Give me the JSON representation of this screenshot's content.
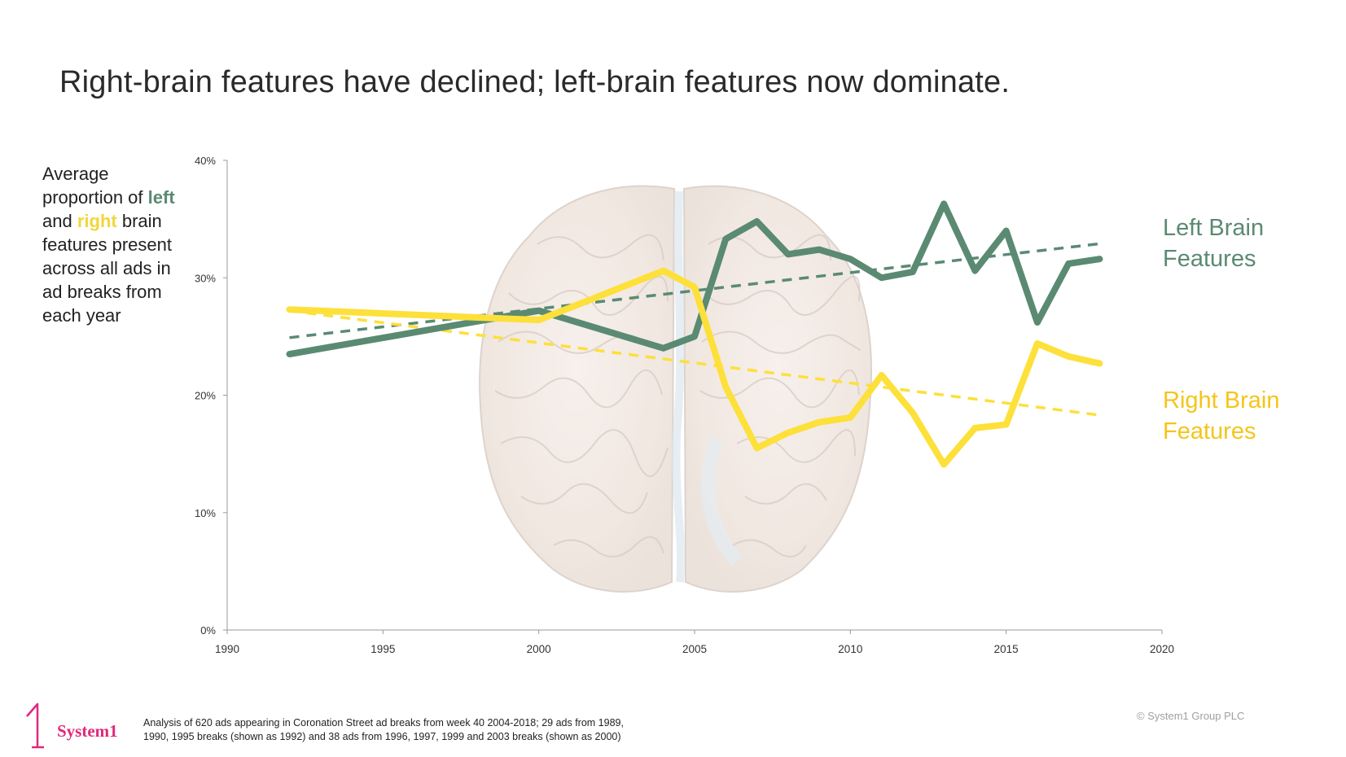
{
  "slide": {
    "title": "Right-brain features have declined; left-brain features now dominate."
  },
  "caption": {
    "part1": "Average proportion of ",
    "left_word": "left",
    "part2": " and ",
    "right_word": "right",
    "part3": " brain features present across all ads in ad breaks from each year"
  },
  "series_labels": {
    "left_line1": "Left Brain",
    "left_line2": "Features",
    "right_line1": "Right Brain",
    "right_line2": "Features"
  },
  "footer": {
    "logo_text": "System1",
    "logo_digit": "1",
    "note_line1": "Analysis of 620 ads appearing in Coronation Street ad breaks from week 40 2004-2018; 29 ads from 1989,",
    "note_line2": "1990, 1995 breaks (shown as 1992) and 38 ads from 1996, 1997, 1999 and 2003 breaks (shown as 2000)",
    "copyright": "© System1 Group PLC"
  },
  "colors": {
    "left": "#5b8a72",
    "right": "#fde03a",
    "brand": "#e0287a",
    "axis": "#9a9a9a"
  },
  "chart_data": {
    "type": "line",
    "title": "",
    "xlabel": "",
    "ylabel": "",
    "xlim": [
      1990,
      2020
    ],
    "ylim": [
      0,
      0.4
    ],
    "xticks": [
      1990,
      1995,
      2000,
      2005,
      2010,
      2015,
      2020
    ],
    "xtick_labels": [
      "1990",
      "1995",
      "2000",
      "2005",
      "2010",
      "2015",
      "2020"
    ],
    "yticks": [
      0,
      0.1,
      0.2,
      0.3,
      0.4
    ],
    "ytick_labels": [
      "0%",
      "10%",
      "20%",
      "30%",
      "40%"
    ],
    "grid": false,
    "series": [
      {
        "name": "Left Brain Features",
        "color": "#5b8a72",
        "x": [
          1992,
          2000,
          2004,
          2005,
          2006,
          2007,
          2008,
          2009,
          2010,
          2011,
          2012,
          2013,
          2014,
          2015,
          2016,
          2017,
          2018
        ],
        "values": [
          0.235,
          0.272,
          0.24,
          0.25,
          0.333,
          0.348,
          0.32,
          0.324,
          0.316,
          0.3,
          0.305,
          0.363,
          0.306,
          0.34,
          0.262,
          0.312,
          0.316
        ]
      },
      {
        "name": "Right Brain Features",
        "color": "#fde03a",
        "x": [
          1992,
          2000,
          2004,
          2005,
          2006,
          2007,
          2008,
          2009,
          2010,
          2011,
          2012,
          2013,
          2014,
          2015,
          2016,
          2017,
          2018
        ],
        "values": [
          0.273,
          0.264,
          0.306,
          0.292,
          0.207,
          0.155,
          0.168,
          0.177,
          0.181,
          0.217,
          0.185,
          0.141,
          0.172,
          0.175,
          0.244,
          0.233,
          0.227
        ]
      }
    ],
    "trendlines": [
      {
        "name": "Left Brain trend",
        "color": "#5b8a72",
        "x": [
          1992,
          2018
        ],
        "values": [
          0.249,
          0.329
        ]
      },
      {
        "name": "Right Brain trend",
        "color": "#fde03a",
        "x": [
          1992,
          2018
        ],
        "values": [
          0.272,
          0.183
        ]
      }
    ]
  }
}
